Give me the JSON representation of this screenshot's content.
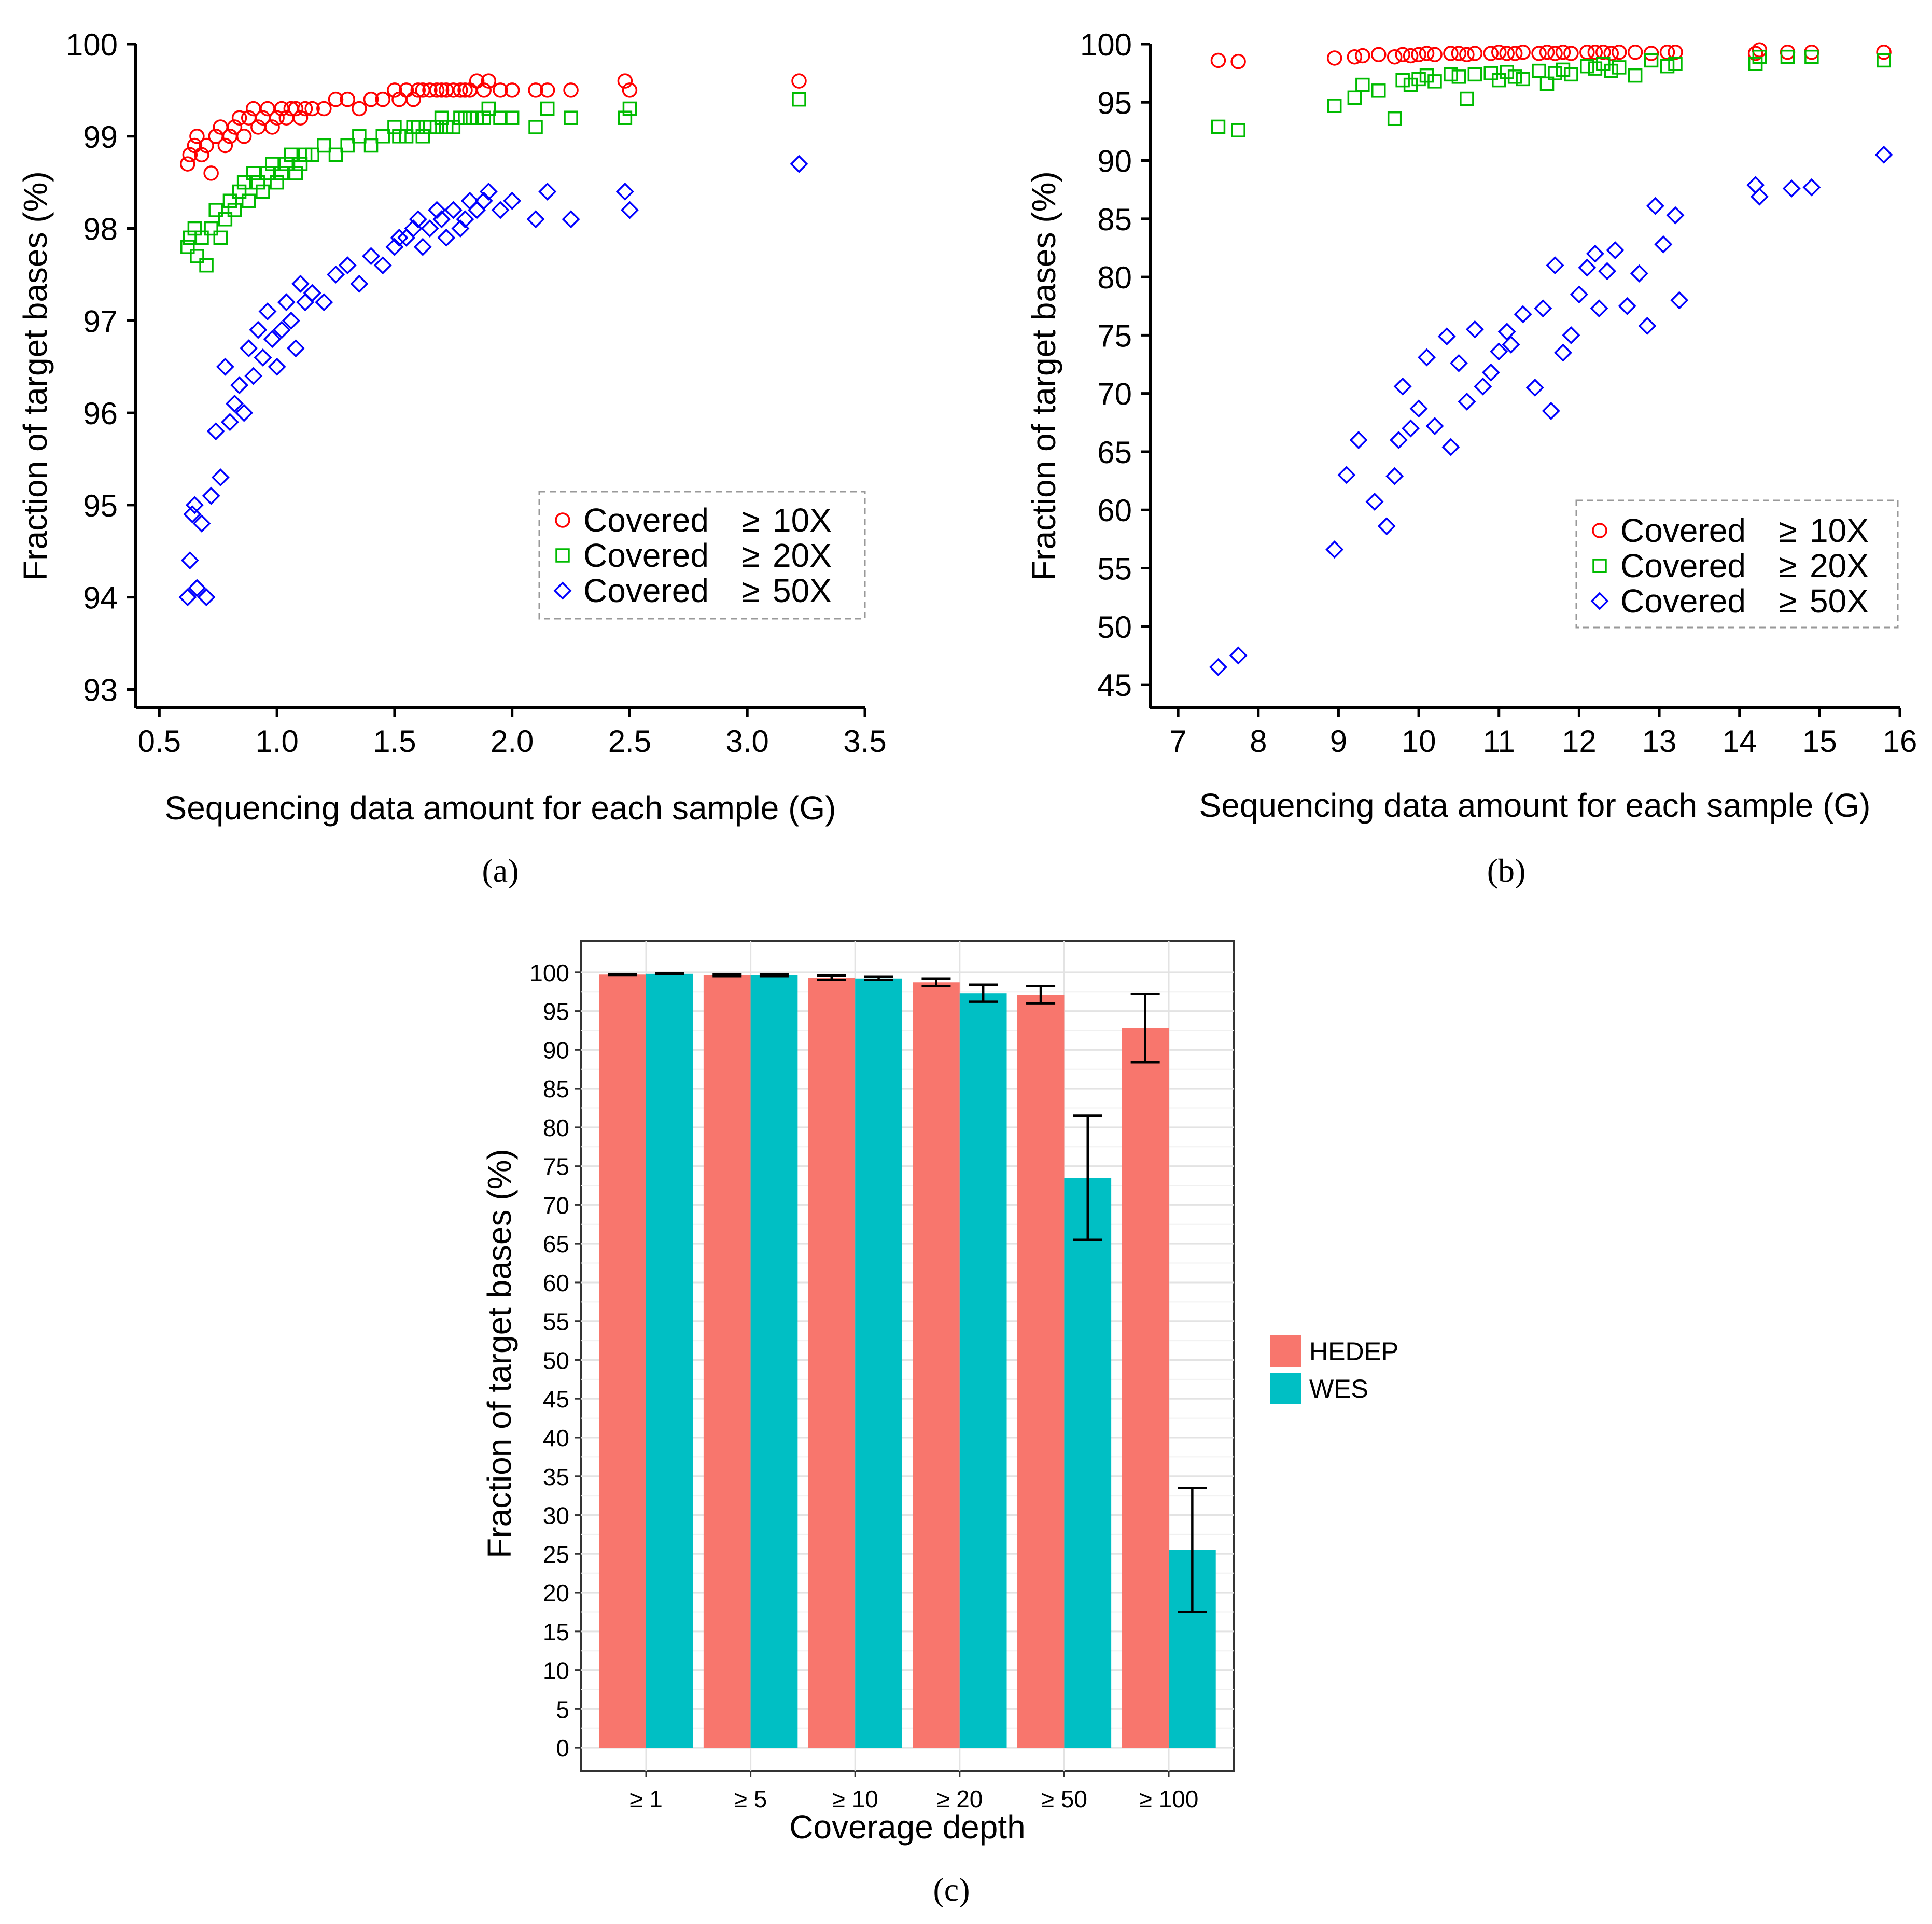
{
  "chart_data": [
    {
      "panel": "(a)",
      "type": "scatter",
      "title": "",
      "xlabel": "Sequencing data amount for each sample (G)",
      "ylabel": "Fraction of target bases (%)",
      "xlim": [
        0.4,
        3.5
      ],
      "ylim": [
        92.8,
        100
      ],
      "xticks": [
        "0.5",
        "1.0",
        "1.5",
        "2.0",
        "2.5",
        "3.0",
        "3.5"
      ],
      "yticks": [
        "93",
        "94",
        "95",
        "96",
        "97",
        "98",
        "99",
        "100"
      ],
      "legend_position": "lower-right",
      "series": [
        {
          "name": "Covered ≥ 10X",
          "marker": "circle",
          "color": "#ff0000",
          "x": [
            0.62,
            0.63,
            0.65,
            0.66,
            0.68,
            0.7,
            0.72,
            0.74,
            0.76,
            0.78,
            0.8,
            0.82,
            0.84,
            0.86,
            0.88,
            0.9,
            0.92,
            0.94,
            0.96,
            0.98,
            1.0,
            1.02,
            1.04,
            1.06,
            1.08,
            1.1,
            1.12,
            1.15,
            1.2,
            1.25,
            1.3,
            1.35,
            1.4,
            1.45,
            1.5,
            1.52,
            1.55,
            1.58,
            1.6,
            1.62,
            1.65,
            1.68,
            1.7,
            1.72,
            1.75,
            1.78,
            1.8,
            1.82,
            1.85,
            1.88,
            1.9,
            1.95,
            2.0,
            2.1,
            2.15,
            2.25,
            2.48,
            2.5,
            3.22
          ],
          "y": [
            98.7,
            98.8,
            98.9,
            99.0,
            98.8,
            98.9,
            98.6,
            99.0,
            99.1,
            98.9,
            99.0,
            99.1,
            99.2,
            99.0,
            99.2,
            99.3,
            99.1,
            99.2,
            99.3,
            99.1,
            99.2,
            99.3,
            99.2,
            99.3,
            99.3,
            99.2,
            99.3,
            99.3,
            99.3,
            99.4,
            99.4,
            99.3,
            99.4,
            99.4,
            99.5,
            99.4,
            99.5,
            99.4,
            99.5,
            99.5,
            99.5,
            99.5,
            99.5,
            99.5,
            99.5,
            99.5,
            99.5,
            99.5,
            99.6,
            99.5,
            99.6,
            99.5,
            99.5,
            99.5,
            99.5,
            99.5,
            99.6,
            99.5,
            99.6
          ]
        },
        {
          "name": "Covered ≥ 20X",
          "marker": "square",
          "color": "#00bb00",
          "x": [
            0.62,
            0.63,
            0.65,
            0.66,
            0.68,
            0.7,
            0.72,
            0.74,
            0.76,
            0.78,
            0.8,
            0.82,
            0.84,
            0.86,
            0.88,
            0.9,
            0.92,
            0.94,
            0.96,
            0.98,
            1.0,
            1.02,
            1.04,
            1.06,
            1.08,
            1.1,
            1.12,
            1.15,
            1.2,
            1.25,
            1.3,
            1.35,
            1.4,
            1.45,
            1.5,
            1.52,
            1.55,
            1.58,
            1.6,
            1.62,
            1.65,
            1.68,
            1.7,
            1.72,
            1.75,
            1.78,
            1.8,
            1.82,
            1.85,
            1.88,
            1.9,
            1.95,
            2.0,
            2.1,
            2.15,
            2.25,
            2.48,
            2.5,
            3.22
          ],
          "y": [
            97.8,
            97.9,
            98.0,
            97.7,
            97.9,
            97.6,
            98.0,
            98.2,
            97.9,
            98.1,
            98.3,
            98.2,
            98.4,
            98.5,
            98.3,
            98.6,
            98.5,
            98.4,
            98.6,
            98.7,
            98.5,
            98.6,
            98.7,
            98.8,
            98.6,
            98.7,
            98.8,
            98.8,
            98.9,
            98.8,
            98.9,
            99.0,
            98.9,
            99.0,
            99.1,
            99.0,
            99.0,
            99.1,
            99.1,
            99.0,
            99.1,
            99.1,
            99.2,
            99.1,
            99.1,
            99.2,
            99.2,
            99.2,
            99.2,
            99.2,
            99.3,
            99.2,
            99.2,
            99.1,
            99.3,
            99.2,
            99.2,
            99.3,
            99.4
          ]
        },
        {
          "name": "Covered ≥ 50X",
          "marker": "diamond",
          "color": "#0000ff",
          "x": [
            0.62,
            0.63,
            0.64,
            0.65,
            0.66,
            0.68,
            0.7,
            0.72,
            0.74,
            0.76,
            0.78,
            0.8,
            0.82,
            0.84,
            0.86,
            0.88,
            0.9,
            0.92,
            0.94,
            0.96,
            0.98,
            1.0,
            1.02,
            1.04,
            1.06,
            1.08,
            1.1,
            1.12,
            1.15,
            1.2,
            1.25,
            1.3,
            1.35,
            1.4,
            1.45,
            1.5,
            1.52,
            1.55,
            1.58,
            1.6,
            1.62,
            1.65,
            1.68,
            1.7,
            1.72,
            1.75,
            1.78,
            1.8,
            1.82,
            1.85,
            1.88,
            1.9,
            1.95,
            2.0,
            2.1,
            2.15,
            2.25,
            2.48,
            2.5,
            3.22
          ],
          "y": [
            94.0,
            94.4,
            94.9,
            95.0,
            94.1,
            94.8,
            94.0,
            95.1,
            95.8,
            95.3,
            96.5,
            95.9,
            96.1,
            96.3,
            96.0,
            96.7,
            96.4,
            96.9,
            96.6,
            97.1,
            96.8,
            96.5,
            96.9,
            97.2,
            97.0,
            96.7,
            97.4,
            97.2,
            97.3,
            97.2,
            97.5,
            97.6,
            97.4,
            97.7,
            97.6,
            97.8,
            97.9,
            97.9,
            98.0,
            98.1,
            97.8,
            98.0,
            98.2,
            98.1,
            97.9,
            98.2,
            98.0,
            98.1,
            98.3,
            98.2,
            98.3,
            98.4,
            98.2,
            98.3,
            98.1,
            98.4,
            98.1,
            98.4,
            98.2,
            98.7
          ]
        }
      ]
    },
    {
      "panel": "(b)",
      "type": "scatter",
      "title": "",
      "xlabel": "Sequencing data amount for each sample (G)",
      "ylabel": "Fraction of target bases (%)",
      "xlim": [
        6.65,
        16
      ],
      "ylim": [
        43,
        100
      ],
      "xticks": [
        "7",
        "8",
        "9",
        "10",
        "11",
        "12",
        "13",
        "14",
        "15",
        "16"
      ],
      "yticks": [
        "45",
        "50",
        "55",
        "60",
        "65",
        "70",
        "75",
        "80",
        "85",
        "90",
        "95",
        "100"
      ],
      "legend_position": "lower-right",
      "series": [
        {
          "name": "Covered ≥ 10X",
          "marker": "circle",
          "color": "#ff0000",
          "x": [
            7.5,
            7.75,
            8.95,
            9.2,
            9.3,
            9.5,
            9.7,
            9.8,
            9.9,
            10.0,
            10.1,
            10.2,
            10.4,
            10.5,
            10.6,
            10.7,
            10.9,
            11.0,
            11.1,
            11.2,
            11.3,
            11.5,
            11.6,
            11.7,
            11.8,
            11.9,
            12.1,
            12.2,
            12.3,
            12.4,
            12.5,
            12.7,
            12.9,
            13.1,
            13.2,
            14.2,
            14.25,
            14.6,
            14.9,
            15.8
          ],
          "y": [
            98.6,
            98.5,
            98.8,
            98.9,
            99.0,
            99.1,
            98.9,
            99.1,
            99.0,
            99.1,
            99.2,
            99.1,
            99.2,
            99.2,
            99.1,
            99.2,
            99.2,
            99.3,
            99.2,
            99.2,
            99.3,
            99.2,
            99.3,
            99.2,
            99.3,
            99.2,
            99.3,
            99.3,
            99.3,
            99.2,
            99.3,
            99.3,
            99.2,
            99.3,
            99.3,
            99.2,
            99.5,
            99.3,
            99.3,
            99.3
          ]
        },
        {
          "name": "Covered ≥ 20X",
          "marker": "square",
          "color": "#00bb00",
          "x": [
            7.5,
            7.75,
            8.95,
            9.2,
            9.3,
            9.5,
            9.7,
            9.8,
            9.9,
            10.0,
            10.1,
            10.2,
            10.4,
            10.5,
            10.6,
            10.7,
            10.9,
            11.0,
            11.1,
            11.2,
            11.3,
            11.5,
            11.6,
            11.7,
            11.8,
            11.9,
            12.1,
            12.2,
            12.3,
            12.4,
            12.5,
            12.7,
            12.9,
            13.1,
            13.2,
            14.2,
            14.25,
            14.6,
            14.9,
            15.8
          ],
          "y": [
            92.9,
            92.6,
            94.7,
            95.4,
            96.5,
            96.0,
            93.6,
            96.9,
            96.5,
            97.0,
            97.3,
            96.8,
            97.4,
            97.2,
            95.3,
            97.4,
            97.5,
            96.9,
            97.6,
            97.2,
            97.0,
            97.7,
            96.6,
            97.5,
            97.8,
            97.4,
            98.1,
            97.9,
            98.3,
            97.7,
            98.0,
            97.3,
            98.6,
            98.1,
            98.3,
            98.3,
            98.9,
            98.9,
            98.9,
            98.6
          ]
        },
        {
          "name": "Covered ≥ 50X",
          "marker": "diamond",
          "color": "#0000ff",
          "x": [
            7.5,
            7.75,
            8.95,
            9.1,
            9.25,
            9.45,
            9.6,
            9.7,
            9.75,
            9.8,
            9.9,
            10.0,
            10.1,
            10.2,
            10.35,
            10.4,
            10.5,
            10.6,
            10.7,
            10.8,
            10.9,
            11.0,
            11.1,
            11.15,
            11.3,
            11.45,
            11.55,
            11.65,
            11.7,
            11.8,
            11.9,
            12.0,
            12.1,
            12.2,
            12.25,
            12.35,
            12.45,
            12.6,
            12.75,
            12.85,
            12.95,
            13.05,
            13.2,
            13.25,
            14.2,
            14.25,
            14.65,
            14.9,
            15.8
          ],
          "y": [
            46.5,
            47.5,
            56.6,
            63.0,
            66.0,
            60.7,
            58.6,
            62.9,
            66.0,
            70.6,
            67.0,
            68.7,
            73.1,
            67.2,
            74.9,
            65.4,
            72.6,
            69.3,
            75.5,
            70.6,
            71.8,
            73.6,
            75.3,
            74.2,
            76.8,
            70.5,
            77.3,
            68.5,
            81.0,
            73.5,
            75.0,
            78.5,
            80.8,
            82.0,
            77.3,
            80.5,
            82.3,
            77.5,
            80.3,
            75.8,
            86.1,
            82.8,
            85.3,
            78.0,
            87.9,
            86.9,
            87.6,
            87.7,
            90.5
          ]
        }
      ]
    },
    {
      "panel": "(c)",
      "type": "bar",
      "title": "",
      "xlabel": "Coverage depth",
      "ylabel": "Fraction of target bases (%)",
      "ylim": [
        -3,
        104
      ],
      "yticks": [
        "0",
        "5",
        "10",
        "15",
        "20",
        "25",
        "30",
        "35",
        "40",
        "45",
        "50",
        "55",
        "60",
        "65",
        "70",
        "75",
        "80",
        "85",
        "90",
        "95",
        "100"
      ],
      "categories": [
        "≥ 1",
        "≥ 5",
        "≥ 10",
        "≥ 20",
        "≥ 50",
        "≥ 100"
      ],
      "legend_position": "right",
      "series": [
        {
          "name": "HEDEP",
          "color": "#f8766d",
          "values": [
            99.7,
            99.6,
            99.3,
            98.7,
            97.1,
            92.8
          ],
          "error": [
            0.05,
            0.1,
            0.3,
            0.5,
            1.1,
            4.4
          ]
        },
        {
          "name": "WES",
          "color": "#00bfc4",
          "values": [
            99.8,
            99.6,
            99.2,
            97.3,
            73.5,
            25.5
          ],
          "error": [
            0.05,
            0.1,
            0.2,
            1.1,
            8.0,
            8.0
          ]
        }
      ]
    }
  ],
  "labels": {
    "a": "(a)",
    "b": "(b)",
    "c": "(c)"
  },
  "legend_ab": {
    "prefix": "Covered",
    "geq": "≥",
    "items": [
      "10X",
      "20X",
      "50X"
    ]
  }
}
